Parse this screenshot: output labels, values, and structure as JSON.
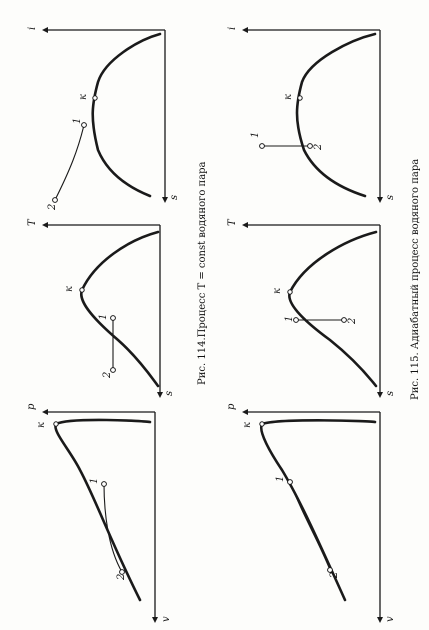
{
  "captions": {
    "fig114": "Рис. 114.Процесс T = const водяного пара",
    "fig115": "Рис. 115. Адиабатный процесс водяного пара"
  },
  "diagrams": [
    {
      "id": "fig114-pv",
      "y_label": "p",
      "x_label": "v",
      "critical": "к",
      "point1": "1",
      "point2": "2"
    },
    {
      "id": "fig114-Ts",
      "y_label": "T",
      "x_label": "s",
      "critical": "к",
      "point1": "1",
      "point2": "2"
    },
    {
      "id": "fig114-is",
      "y_label": "i",
      "x_label": "s",
      "critical": "к",
      "point1": "1",
      "point2": "2"
    },
    {
      "id": "fig115-pv",
      "y_label": "p",
      "x_label": "v",
      "critical": "к",
      "point1": "1",
      "point2": "2"
    },
    {
      "id": "fig115-Ts",
      "y_label": "T",
      "x_label": "s",
      "critical": "к",
      "point1": "1",
      "point2": "2"
    },
    {
      "id": "fig115-is",
      "y_label": "i",
      "x_label": "s",
      "critical": "к",
      "point1": "1",
      "point2": "2"
    }
  ]
}
